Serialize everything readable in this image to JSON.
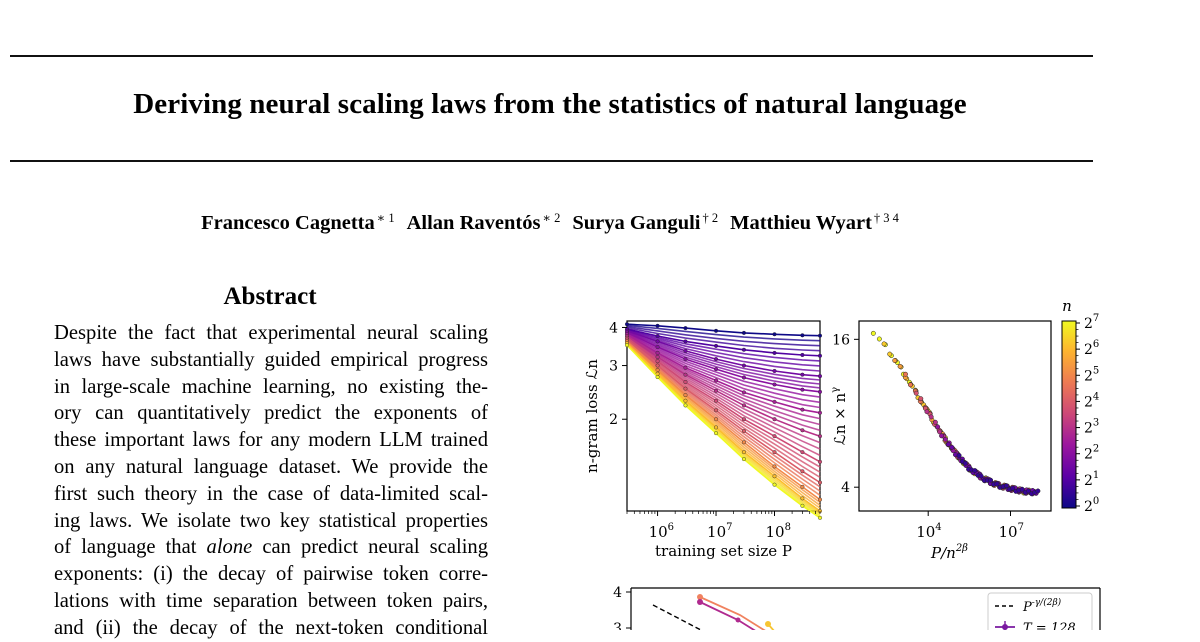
{
  "paper": {
    "title": "Deriving neural scaling laws from the statistics of natural language",
    "authors": [
      {
        "name": "Francesco Cagnetta",
        "marks": "∗ 1"
      },
      {
        "name": "Allan Raventós",
        "marks": "∗ 2"
      },
      {
        "name": "Surya Ganguli",
        "marks": "† 2"
      },
      {
        "name": "Matthieu Wyart",
        "marks": "† 3 4"
      }
    ],
    "abstract_heading": "Abstract",
    "abstract_lines": [
      {
        "text": "Despite the fact that experimental neural scaling"
      },
      {
        "text": "laws have substantially guided empirical progress"
      },
      {
        "text": "in large-scale machine learning, no existing the-"
      },
      {
        "text": "ory can quantitatively predict the exponents of"
      },
      {
        "text": "these important laws for any modern LLM trained"
      },
      {
        "text": "on any natural language dataset. We provide the"
      },
      {
        "text": "first such theory in the case of data-limited scal-"
      },
      {
        "text": "ing laws. We isolate two key statistical properties"
      },
      {
        "pre": "of language that ",
        "em": "alone",
        "post": " can predict neural scaling"
      },
      {
        "text": "exponents: (i) the decay of pairwise token corre-"
      },
      {
        "text": "lations with time separation between token pairs,"
      },
      {
        "text": "and (ii) the decay of the next-token conditional"
      }
    ]
  },
  "chart_data": [
    {
      "type": "line",
      "xlabel": "training set size P",
      "ylabel": "n-gram loss ℒn",
      "x_scale": "log",
      "y_scale": "log",
      "x_ticks": [
        "10^6",
        "10^7",
        "10^8"
      ],
      "y_ticks": [
        "2",
        "3",
        "4"
      ],
      "xlim": [
        300000,
        600000000
      ],
      "ylim": [
        1.0,
        4.2
      ],
      "x": [
        300000,
        1000000,
        3000000,
        10000000,
        30000000,
        100000000,
        300000000,
        600000000
      ],
      "series": [
        {
          "n": 1,
          "values": [
            4.1,
            4.05,
            3.98,
            3.9,
            3.84,
            3.8,
            3.77,
            3.76
          ]
        },
        {
          "n": 2,
          "values": [
            3.95,
            3.75,
            3.6,
            3.48,
            3.38,
            3.3,
            3.25,
            3.23
          ]
        },
        {
          "n": 3,
          "values": [
            3.9,
            3.6,
            3.35,
            3.15,
            3.0,
            2.88,
            2.8,
            2.77
          ]
        },
        {
          "n": 4,
          "values": [
            3.85,
            3.45,
            3.15,
            2.92,
            2.74,
            2.6,
            2.5,
            2.46
          ]
        },
        {
          "n": 6,
          "values": [
            3.8,
            3.3,
            2.95,
            2.68,
            2.45,
            2.28,
            2.15,
            2.1
          ]
        },
        {
          "n": 8,
          "values": [
            3.75,
            3.2,
            2.8,
            2.48,
            2.22,
            2.0,
            1.84,
            1.76
          ]
        },
        {
          "n": 12,
          "values": [
            3.7,
            3.1,
            2.65,
            2.3,
            2.0,
            1.76,
            1.56,
            1.45
          ]
        },
        {
          "n": 16,
          "values": [
            3.65,
            3.0,
            2.52,
            2.14,
            1.83,
            1.56,
            1.35,
            1.24
          ]
        },
        {
          "n": 32,
          "values": [
            3.6,
            2.9,
            2.4,
            2.0,
            1.68,
            1.4,
            1.2,
            1.09
          ]
        },
        {
          "n": 64,
          "values": [
            3.55,
            2.82,
            2.3,
            1.88,
            1.56,
            1.3,
            1.1,
            1.0
          ]
        },
        {
          "n": 128,
          "values": [
            3.5,
            2.75,
            2.22,
            1.8,
            1.48,
            1.22,
            1.04,
            0.95
          ]
        }
      ]
    },
    {
      "type": "scatter",
      "xlabel": "P/n^{2β}",
      "ylabel": "ℒn × n^γ",
      "x_scale": "log",
      "y_scale": "log",
      "x_ticks": [
        "10^4",
        "10^7"
      ],
      "y_ticks": [
        "4",
        "16"
      ],
      "xlim": [
        30,
        300000000
      ],
      "ylim": [
        3.2,
        19
      ],
      "curve_x": [
        100,
        300,
        1000,
        3000,
        10000,
        30000,
        100000,
        300000,
        1000000,
        3000000,
        10000000,
        30000000,
        100000000
      ],
      "curve_y": [
        17.2,
        14.8,
        12.2,
        10.0,
        8.1,
        6.6,
        5.5,
        4.8,
        4.35,
        4.1,
        3.95,
        3.85,
        3.8
      ]
    },
    {
      "type": "colorbar",
      "label": "n",
      "ticks": [
        "2^0",
        "2^1",
        "2^2",
        "2^3",
        "2^4",
        "2^5",
        "2^6",
        "2^7"
      ],
      "colors": [
        "#0d0887",
        "#5c01a6",
        "#9c179e",
        "#cc4778",
        "#ed7953",
        "#fdb42f",
        "#f0f921"
      ]
    },
    {
      "type": "line",
      "y_ticks": [
        "4",
        "3"
      ],
      "legend_position": "top-right",
      "legend": [
        "P^{-γ/(2β)}",
        "T = 128"
      ]
    }
  ]
}
